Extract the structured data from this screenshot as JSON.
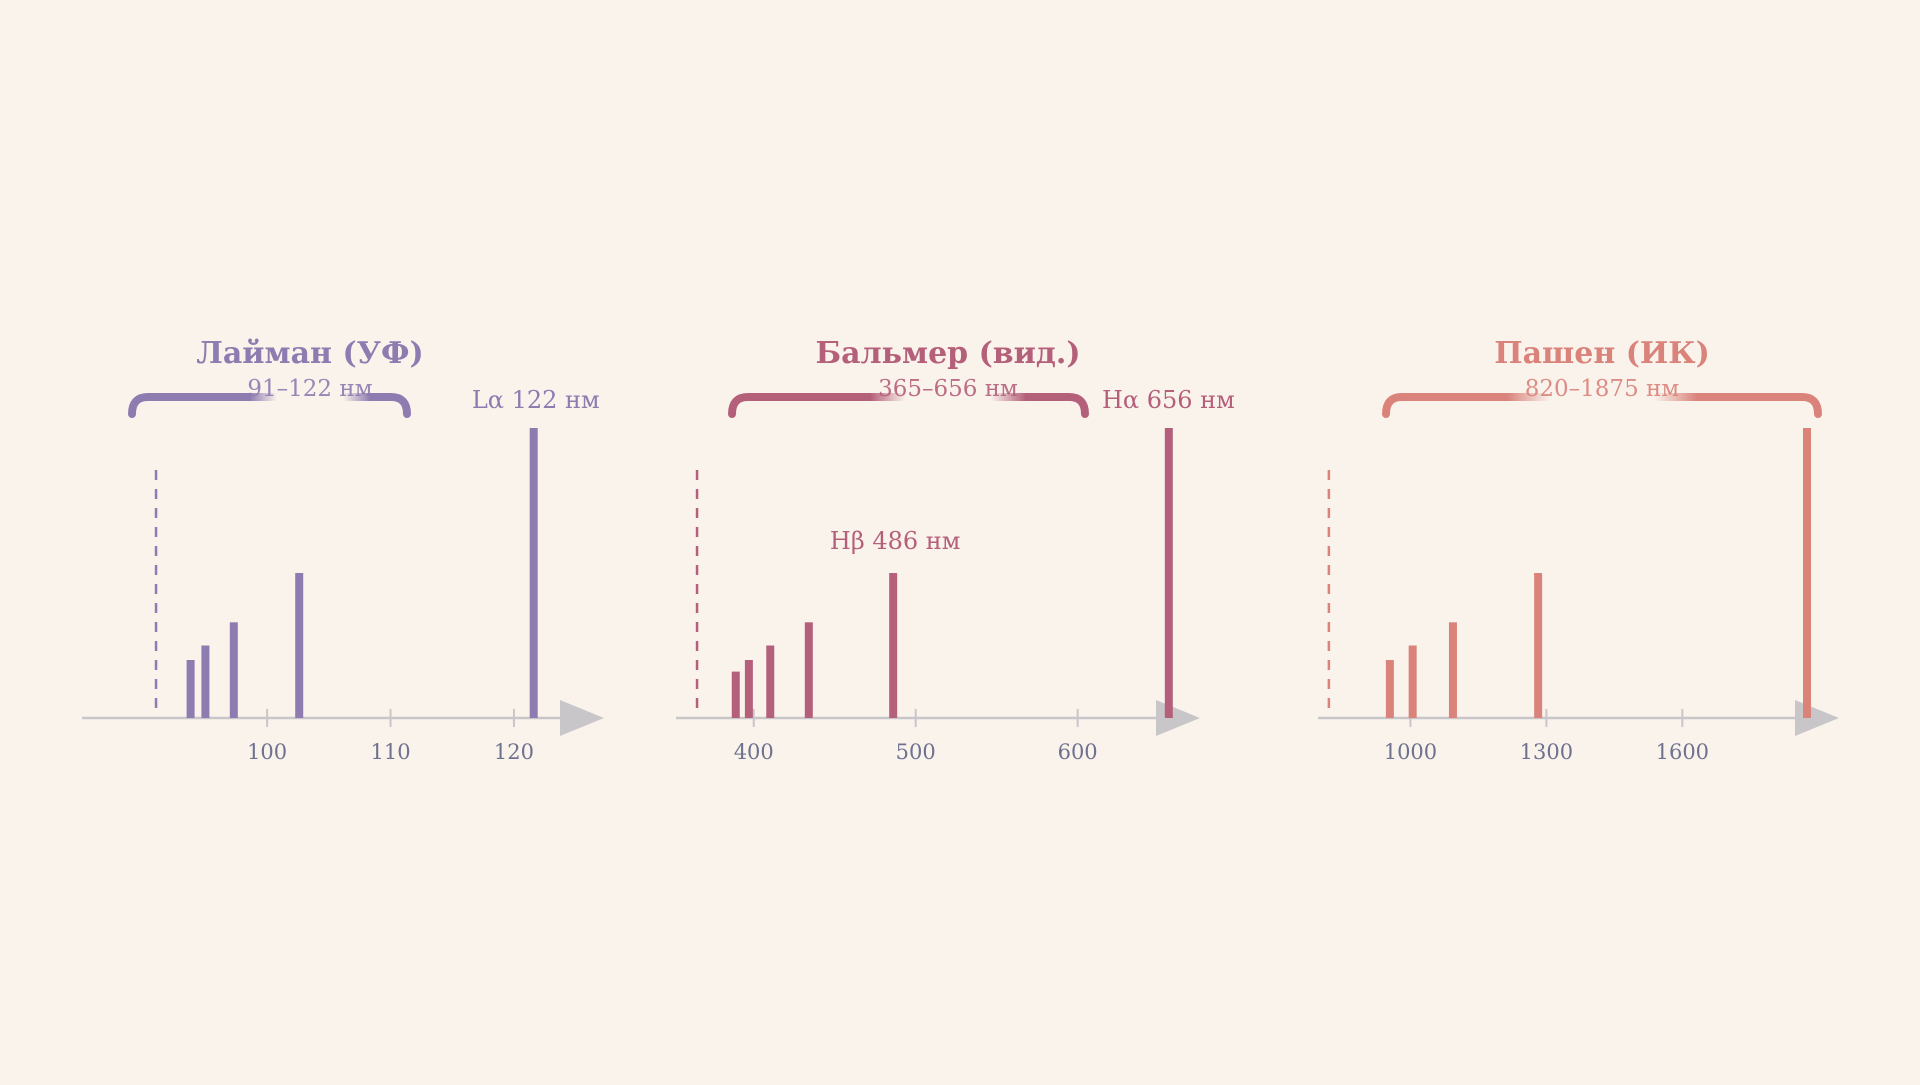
{
  "chart_data": [
    {
      "type": "bar",
      "title": "Лайман (УФ)",
      "range_label": "91–122 нм",
      "color": "#8e7bb0",
      "series_limit": 91,
      "xlim": [
        85,
        126
      ],
      "ticks": [
        "100",
        "110",
        "120"
      ],
      "tick_values": [
        100,
        110,
        120
      ],
      "lines": [
        93.8,
        95.0,
        97.3,
        102.6,
        121.6
      ],
      "strengths": [
        0.2,
        0.25,
        0.33,
        0.5,
        1.0
      ],
      "annotations": [
        {
          "line": 121.6,
          "text": "Lα  122 нм"
        }
      ]
    },
    {
      "type": "bar",
      "title": "Бальмер (вид.)",
      "range_label": "365–656 нм",
      "color": "#b5607a",
      "series_limit": 365,
      "xlim": [
        352,
        670
      ],
      "ticks": [
        "400",
        "500",
        "600"
      ],
      "tick_values": [
        400,
        500,
        600
      ],
      "lines": [
        388.9,
        397.0,
        410.2,
        434.0,
        486.1,
        656.3
      ],
      "strengths": [
        0.16,
        0.2,
        0.25,
        0.33,
        0.5,
        1.0
      ],
      "annotations": [
        {
          "line": 486.1,
          "text": "Hβ  486 нм"
        },
        {
          "line": 656.3,
          "text": "Hα  656 нм"
        }
      ]
    },
    {
      "type": "bar",
      "title": "Пашен (ИК)",
      "range_label": "820–1875 нм",
      "color": "#d9837b",
      "series_limit": 820,
      "xlim": [
        796,
        1906
      ],
      "ticks": [
        "1000",
        "1300",
        "1600"
      ],
      "tick_values": [
        1000,
        1300,
        1600
      ],
      "lines": [
        954.6,
        1004.9,
        1093.8,
        1281.8,
        1875.1
      ],
      "strengths": [
        0.2,
        0.25,
        0.33,
        0.5,
        1.0
      ]
    }
  ]
}
